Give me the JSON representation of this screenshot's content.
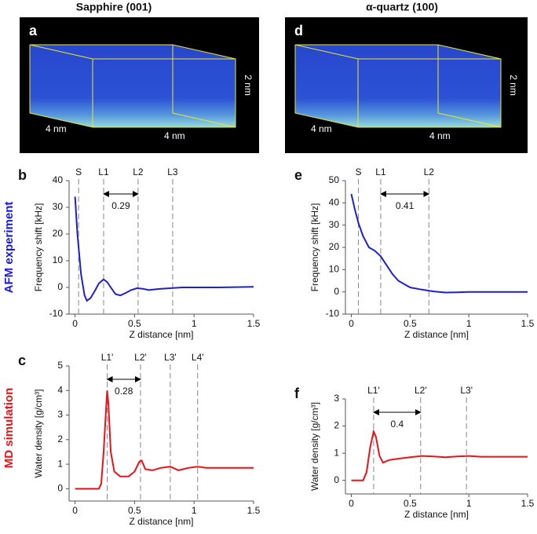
{
  "images": [
    {
      "panel": "a",
      "title": "Sapphire (001)",
      "dims": [
        "4 nm",
        "4 nm",
        "2 nm"
      ]
    },
    {
      "panel": "d",
      "title": "α-quartz (100)",
      "dims": [
        "4 nm",
        "4 nm",
        "2 nm"
      ]
    }
  ],
  "row_labels": [
    {
      "text": "AFM experiment",
      "color": "#1a1adf"
    },
    {
      "text": "MD simulation",
      "color": "#e8141a"
    }
  ],
  "chart_data": [
    {
      "type": "line",
      "panel": "b",
      "xlabel": "Z distance [nm]",
      "ylabel": "Frequency shift [kHz]",
      "color": "#1f1fd0",
      "x": [
        0,
        0.02,
        0.05,
        0.08,
        0.1,
        0.13,
        0.17,
        0.2,
        0.24,
        0.27,
        0.3,
        0.34,
        0.38,
        0.42,
        0.47,
        0.52,
        0.57,
        0.62,
        0.7,
        0.8,
        0.9,
        1,
        1.2,
        1.5
      ],
      "values": [
        34,
        20,
        5,
        -3,
        -5,
        -4,
        -1,
        1.5,
        3,
        2,
        0,
        -2.5,
        -3,
        -2.2,
        -1,
        -0.3,
        -0.5,
        -1,
        -0.6,
        -0.3,
        0,
        0,
        0,
        0.2
      ],
      "xlim": [
        -0.05,
        1.5
      ],
      "ylim": [
        -10,
        40
      ],
      "xticks": [
        0,
        0.5,
        1,
        1.5
      ],
      "yticks": [
        -10,
        0,
        10,
        20,
        30,
        40
      ],
      "vlines": [
        {
          "label": "S",
          "x": 0.03
        },
        {
          "label": "L1",
          "x": 0.24
        },
        {
          "label": "L2",
          "x": 0.53
        },
        {
          "label": "L3",
          "x": 0.82
        }
      ],
      "spacing": 0.29
    },
    {
      "type": "line",
      "panel": "e",
      "xlabel": "Z distance [nm]",
      "ylabel": "Frequency shift [kHz]",
      "color": "#1f1fd0",
      "x": [
        0,
        0.03,
        0.06,
        0.1,
        0.15,
        0.2,
        0.25,
        0.3,
        0.35,
        0.4,
        0.5,
        0.6,
        0.7,
        0.8,
        0.9,
        1,
        1.2,
        1.5
      ],
      "values": [
        44,
        37,
        31,
        25,
        20,
        18.5,
        16,
        12,
        8,
        5,
        2,
        1,
        0.2,
        -0.3,
        -0.2,
        0,
        0,
        0
      ],
      "xlim": [
        -0.05,
        1.5
      ],
      "ylim": [
        -10,
        50
      ],
      "xticks": [
        0,
        0.5,
        1,
        1.5
      ],
      "yticks": [
        -10,
        0,
        10,
        20,
        30,
        40,
        50
      ],
      "vlines": [
        {
          "label": "S",
          "x": 0.06
        },
        {
          "label": "L1",
          "x": 0.25
        },
        {
          "label": "L2",
          "x": 0.66
        }
      ],
      "spacing": 0.41
    },
    {
      "type": "line",
      "panel": "c",
      "xlabel": "Z distance [nm]",
      "ylabel": "Water density [g/cm³]",
      "color": "#e8141a",
      "x": [
        0,
        0.2,
        0.22,
        0.24,
        0.26,
        0.27,
        0.28,
        0.3,
        0.33,
        0.38,
        0.45,
        0.5,
        0.54,
        0.56,
        0.59,
        0.65,
        0.72,
        0.8,
        0.87,
        0.95,
        1.03,
        1.1,
        1.2,
        1.3,
        1.5
      ],
      "values": [
        0,
        0,
        0.2,
        1.5,
        3.2,
        4,
        3.5,
        1.5,
        0.7,
        0.5,
        0.5,
        0.7,
        1.1,
        1.15,
        0.8,
        0.75,
        0.85,
        0.9,
        0.75,
        0.85,
        0.9,
        0.85,
        0.85,
        0.85,
        0.85
      ],
      "xlim": [
        -0.05,
        1.5
      ],
      "ylim": [
        -0.5,
        5
      ],
      "xticks": [
        0,
        0.5,
        1,
        1.5
      ],
      "yticks": [
        0,
        1,
        2,
        3,
        4,
        5
      ],
      "vlines": [
        {
          "label": "L1'",
          "x": 0.27
        },
        {
          "label": "L2'",
          "x": 0.55
        },
        {
          "label": "L3'",
          "x": 0.8
        },
        {
          "label": "L4'",
          "x": 1.03
        }
      ],
      "spacing": 0.28
    },
    {
      "type": "line",
      "panel": "f",
      "xlabel": "Z distance [nm]",
      "ylabel": "Water density [g/cm³]",
      "color": "#e8141a",
      "x": [
        0,
        0.1,
        0.13,
        0.16,
        0.19,
        0.21,
        0.24,
        0.27,
        0.32,
        0.4,
        0.5,
        0.6,
        0.7,
        0.8,
        0.9,
        1,
        1.1,
        1.3,
        1.5
      ],
      "values": [
        0,
        0,
        0.3,
        1.2,
        1.8,
        1.6,
        0.9,
        0.65,
        0.75,
        0.8,
        0.85,
        0.9,
        0.88,
        0.85,
        0.88,
        0.9,
        0.87,
        0.87,
        0.87
      ],
      "xlim": [
        -0.05,
        1.5
      ],
      "ylim": [
        -0.5,
        3
      ],
      "xticks": [
        0,
        0.5,
        1,
        1.5
      ],
      "yticks": [
        0,
        1,
        2,
        3
      ],
      "vlines": [
        {
          "label": "L1'",
          "x": 0.19
        },
        {
          "label": "L2'",
          "x": 0.59
        },
        {
          "label": "L3'",
          "x": 0.98
        }
      ],
      "spacing": 0.4
    }
  ]
}
